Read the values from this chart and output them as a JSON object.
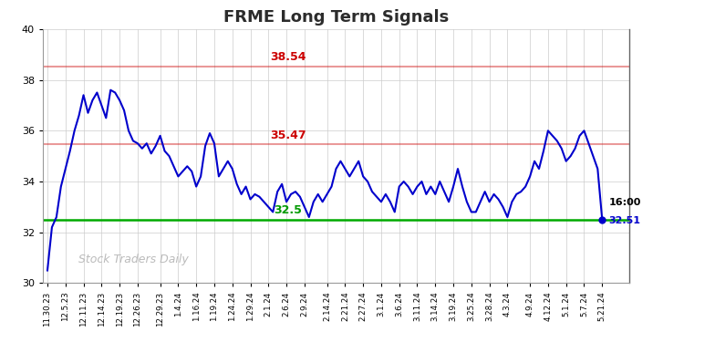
{
  "title": "FRME Long Term Signals",
  "title_color": "#2c2c2c",
  "background_color": "#ffffff",
  "plot_bg_color": "#ffffff",
  "grid_color": "#cccccc",
  "line_color": "#0000cc",
  "line_width": 1.5,
  "hline_upper": 38.54,
  "hline_upper_color": "#cc0000",
  "hline_upper_alpha": 0.4,
  "hline_middle": 35.47,
  "hline_middle_color": "#cc0000",
  "hline_middle_alpha": 0.4,
  "hline_lower": 32.5,
  "hline_lower_color": "#00aa00",
  "hline_lower_alpha": 1.0,
  "annotation_upper": "38.54",
  "annotation_middle": "35.47",
  "annotation_lower": "32.5",
  "annotation_color_upper": "#cc0000",
  "annotation_color_middle": "#cc0000",
  "annotation_color_lower": "#009900",
  "watermark": "Stock Traders Daily",
  "watermark_color": "#bbbbbb",
  "end_label": "16:00",
  "end_value": "32.51",
  "end_dot_color": "#0000cc",
  "ylim_min": 30,
  "ylim_max": 40,
  "yticks": [
    30,
    32,
    34,
    36,
    38,
    40
  ],
  "xlabels": [
    "11.30.23",
    "12.5.23",
    "12.11.23",
    "12.14.23",
    "12.19.23",
    "12.26.23",
    "12.29.23",
    "1.4.24",
    "1.16.24",
    "1.19.24",
    "1.24.24",
    "1.29.24",
    "2.1.24",
    "2.6.24",
    "2.9.24",
    "2.14.24",
    "2.21.24",
    "2.27.24",
    "3.1.24",
    "3.6.24",
    "3.11.24",
    "3.14.24",
    "3.19.24",
    "3.25.24",
    "3.28.24",
    "4.3.24",
    "4.9.24",
    "4.12.24",
    "5.1.24",
    "5.7.24",
    "5.21.24"
  ],
  "ydata": [
    30.5,
    32.2,
    32.6,
    33.8,
    34.5,
    35.2,
    36.0,
    36.6,
    37.4,
    36.7,
    37.2,
    37.5,
    37.0,
    36.5,
    37.6,
    37.5,
    37.2,
    36.8,
    36.0,
    35.6,
    35.5,
    35.3,
    35.5,
    35.1,
    35.4,
    35.8,
    35.2,
    35.0,
    34.6,
    34.2,
    34.4,
    34.6,
    34.4,
    33.8,
    34.2,
    35.4,
    35.9,
    35.5,
    34.2,
    34.5,
    34.8,
    34.5,
    33.9,
    33.5,
    33.8,
    33.3,
    33.5,
    33.4,
    33.2,
    33.0,
    32.8,
    33.6,
    33.9,
    33.2,
    33.5,
    33.6,
    33.4,
    33.0,
    32.6,
    33.2,
    33.5,
    33.2,
    33.5,
    33.8,
    34.5,
    34.8,
    34.5,
    34.2,
    34.5,
    34.8,
    34.2,
    34.0,
    33.6,
    33.4,
    33.2,
    33.5,
    33.2,
    32.8,
    33.8,
    34.0,
    33.8,
    33.5,
    33.8,
    34.0,
    33.5,
    33.8,
    33.5,
    34.0,
    33.6,
    33.2,
    33.8,
    34.5,
    33.8,
    33.2,
    32.8,
    32.8,
    33.2,
    33.6,
    33.2,
    33.5,
    33.3,
    33.0,
    32.6,
    33.2,
    33.5,
    33.6,
    33.8,
    34.2,
    34.8,
    34.5,
    35.2,
    36.0,
    35.8,
    35.6,
    35.3,
    34.8,
    35.0,
    35.3,
    35.8,
    36.0,
    35.5,
    35.0,
    34.5,
    32.51
  ]
}
